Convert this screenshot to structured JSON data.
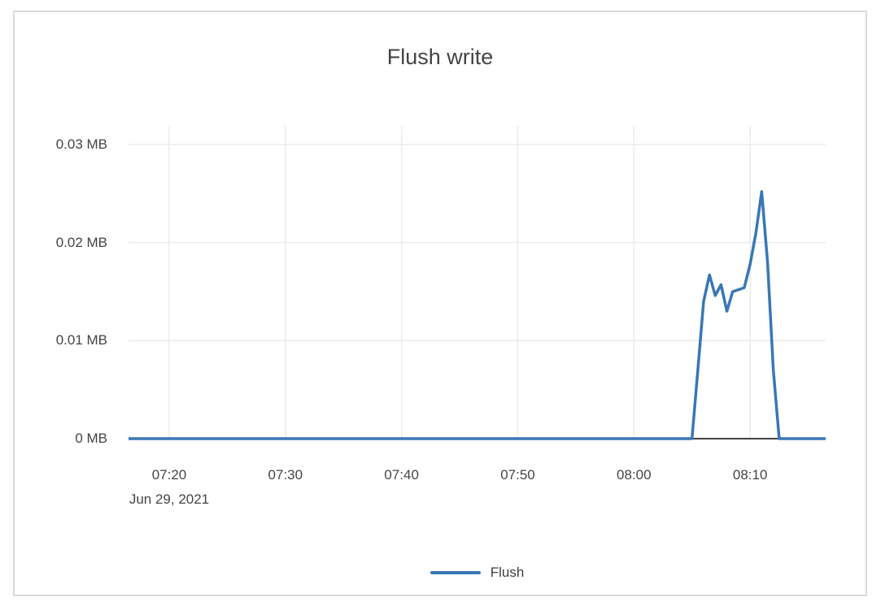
{
  "window": {
    "panel": "chart-card"
  },
  "chart_data": {
    "type": "line",
    "title": "Flush write",
    "x_axis": {
      "date_label": "Jun 29, 2021",
      "ticks": [
        "07:20",
        "07:30",
        "07:40",
        "07:50",
        "08:00",
        "08:10"
      ],
      "range": [
        "07:16:30",
        "08:16:30"
      ],
      "grid": true
    },
    "y_axis": {
      "unit": "MB",
      "ticks": [
        {
          "value": 0,
          "label": "0 MB"
        },
        {
          "value": 0.01,
          "label": "0.01 MB"
        },
        {
          "value": 0.02,
          "label": "0.02 MB"
        },
        {
          "value": 0.03,
          "label": "0.03 MB"
        }
      ],
      "range": [
        0,
        0.0319
      ],
      "grid": true
    },
    "legend": {
      "position": "bottom-center",
      "entries": [
        "Flush"
      ]
    },
    "series": [
      {
        "name": "Flush",
        "color": "#3a77b4",
        "points": [
          [
            "07:16:30",
            0
          ],
          [
            "07:20:00",
            0
          ],
          [
            "07:30:00",
            0
          ],
          [
            "07:40:00",
            0
          ],
          [
            "07:50:00",
            0
          ],
          [
            "08:00:00",
            0
          ],
          [
            "08:05:00",
            0
          ],
          [
            "08:05:30",
            0.007
          ],
          [
            "08:06:00",
            0.014
          ],
          [
            "08:06:30",
            0.0167
          ],
          [
            "08:07:00",
            0.0146
          ],
          [
            "08:07:30",
            0.0157
          ],
          [
            "08:08:00",
            0.013
          ],
          [
            "08:08:30",
            0.015
          ],
          [
            "08:09:00",
            0.0152
          ],
          [
            "08:09:30",
            0.0154
          ],
          [
            "08:10:00",
            0.0178
          ],
          [
            "08:10:30",
            0.021
          ],
          [
            "08:11:00",
            0.0252
          ],
          [
            "08:11:30",
            0.018
          ],
          [
            "08:12:00",
            0.007
          ],
          [
            "08:12:30",
            0
          ],
          [
            "08:13:00",
            0
          ],
          [
            "08:14:00",
            0
          ],
          [
            "08:15:00",
            0
          ],
          [
            "08:16:30",
            0
          ]
        ]
      }
    ],
    "colors": {
      "line": "#3a77b4",
      "gridline": "#ebebeb",
      "zero_line": "#404040",
      "text": "#444444",
      "card_border": "#d9d9d9",
      "background": "#ffffff"
    }
  }
}
